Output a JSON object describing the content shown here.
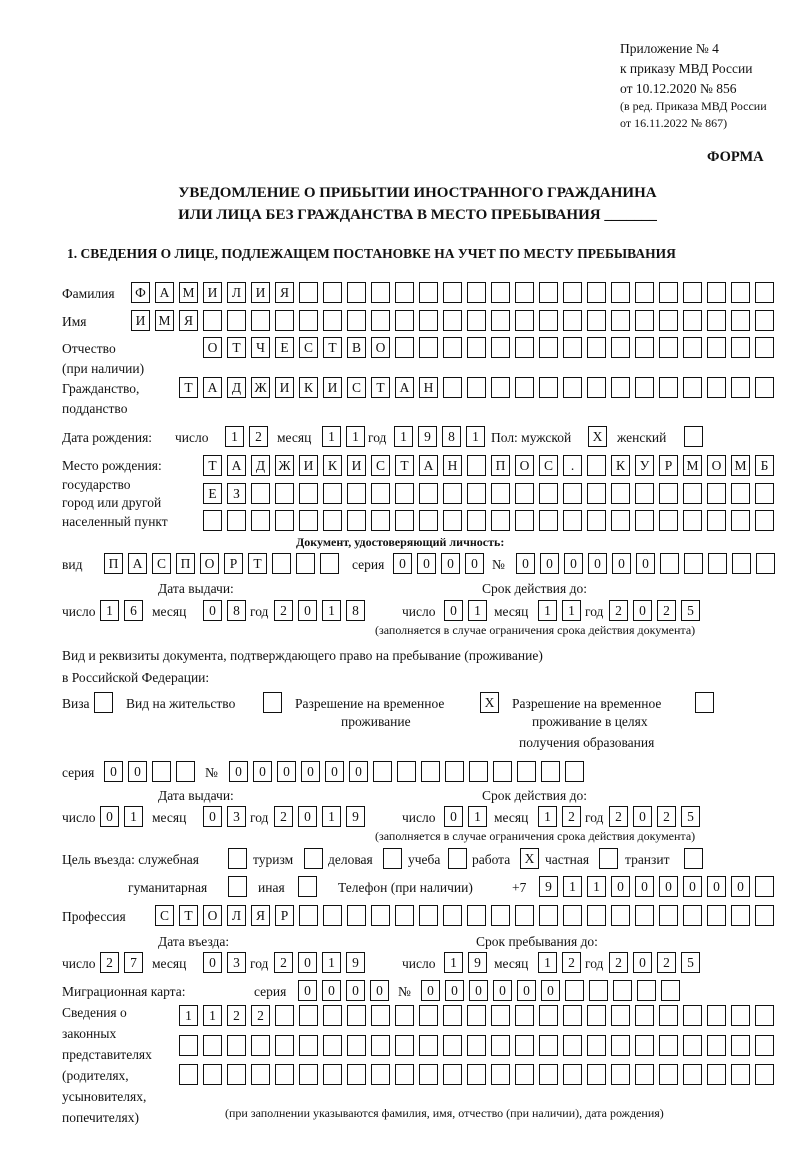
{
  "header": {
    "l1": "Приложение № 4",
    "l2": "к приказу МВД России",
    "l3": "от 10.12.2020 № 856",
    "l4": "(в ред. Приказа МВД России",
    "l5": "от 16.11.2022 № 867)",
    "forma": "ФОРМА"
  },
  "title": {
    "l1": "УВЕДОМЛЕНИЕ О ПРИБЫТИИ ИНОСТРАННОГО ГРАЖДАНИНА",
    "l2": "ИЛИ ЛИЦА БЕЗ ГРАЖДАНСТВА В МЕСТО ПРЕБЫВАНИЯ _______"
  },
  "section1": "1. СВЕДЕНИЯ О ЛИЦЕ, ПОДЛЕЖАЩЕМ ПОСТАНОВКЕ НА УЧЕТ ПО МЕСТУ ПРЕБЫВАНИЯ",
  "labels": {
    "surname": "Фамилия",
    "name": "Имя",
    "patronymic": "Отчество",
    "patronymic2": "(при наличии)",
    "citizenship": "Гражданство,",
    "citizenship2": "подданство",
    "dob": "Дата рождения:",
    "day": "число",
    "month": "месяц",
    "year": "год",
    "sex_male": "Пол: мужской",
    "sex_female": "женский",
    "pob1": "Место рождения:",
    "pob2": "государство",
    "pob3": "город или другой",
    "pob4": "населенный пункт",
    "id_doc": "Документ, удостоверяющий личность:",
    "kind": "вид",
    "series": "серия",
    "number": "№",
    "issue_date": "Дата выдачи:",
    "valid_until": "Срок действия до:",
    "valid_note": "(заполняется в случае ограничения срока действия документа)",
    "right_doc1": "Вид и реквизиты документа, подтверждающего право на пребывание (проживание)",
    "right_doc2": "в Российской Федерации:",
    "visa": "Виза",
    "residence": "Вид на жительство",
    "trp1": "Разрешение на временное",
    "trp2": "проживание",
    "trpe1": "Разрешение на временное",
    "trpe2": "проживание в целях",
    "trpe3": "получения образования",
    "purpose": "Цель въезда: служебная",
    "tourism": "туризм",
    "business": "деловая",
    "study": "учеба",
    "work": "работа",
    "private": "частная",
    "transit": "транзит",
    "humanitarian": "гуманитарная",
    "other": "иная",
    "phone": "Телефон (при наличии)",
    "phone_prefix": "+7",
    "profession": "Профессия",
    "entry_date": "Дата въезда:",
    "stay_until": "Срок пребывания до:",
    "migration_card": "Миграционная карта:",
    "rep1": "Сведения о",
    "rep2": "законных",
    "rep3": "представителях",
    "rep4": "(родителях,",
    "rep5": "усыновителях,",
    "rep6": "попечителях)",
    "rep_note": "(при заполнении указываются фамилия, имя, отчество (при наличии), дата рождения)"
  },
  "fields": {
    "surname": "ФАМИЛИЯ",
    "name": "ИМЯ",
    "patronymic": "ОТЧЕСТВО",
    "citizenship": "ТАДЖИКИСТАН",
    "dob_day": "12",
    "dob_month": "11",
    "dob_year": "1981",
    "sex_male": "X",
    "sex_female": "",
    "pob_row1": "ТАДЖИКИСТАН ПОС. КУРМОМБ",
    "pob_row2": "ЕЗ",
    "pob_row3": "",
    "doc_kind": "ПАСПОРТ",
    "doc_series": "0000",
    "doc_number": "000000",
    "doc_issue_day": "16",
    "doc_issue_month": "08",
    "doc_issue_year": "2018",
    "doc_valid_day": "01",
    "doc_valid_month": "11",
    "doc_valid_year": "2025",
    "visa": "",
    "residence": "",
    "trp": "X",
    "trpe": "",
    "right_series": "00",
    "right_number": "000000",
    "right_issue_day": "01",
    "right_issue_month": "03",
    "right_issue_year": "2019",
    "right_valid_day": "01",
    "right_valid_month": "12",
    "right_valid_year": "2025",
    "p_service": "",
    "p_tourism": "",
    "p_business": "",
    "p_study": "",
    "p_work": "X",
    "p_private": "",
    "p_transit": "",
    "p_humanitarian": "",
    "p_other": "",
    "phone": "911000000",
    "profession": "СТОЛЯР",
    "entry_day": "27",
    "entry_month": "03",
    "entry_year": "2019",
    "stay_day": "19",
    "stay_month": "12",
    "stay_year": "2025",
    "mc_series": "0000",
    "mc_number": "000000",
    "rep_row1": "1122",
    "rep_row2": "",
    "rep_row3": ""
  }
}
